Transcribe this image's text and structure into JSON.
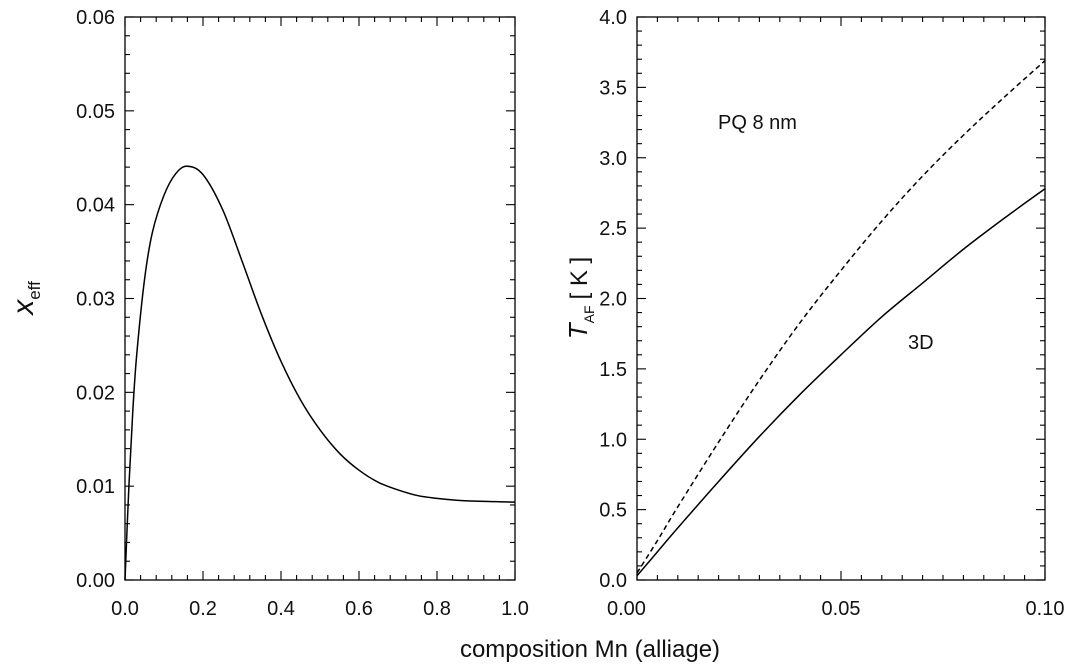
{
  "chart_data": [
    {
      "type": "line",
      "ylabel": "x",
      "ylabel_sub": "eff",
      "xlim": [
        0.0,
        1.0
      ],
      "ylim": [
        0.0,
        0.06
      ],
      "x_ticks": [
        "0.0",
        "0.2",
        "0.4",
        "0.6",
        "0.8",
        "1.0"
      ],
      "y_ticks": [
        "0.00",
        "0.01",
        "0.02",
        "0.03",
        "0.04",
        "0.05",
        "0.06"
      ],
      "series": [
        {
          "line_style": "solid",
          "x": [
            0.0,
            0.01,
            0.02,
            0.03,
            0.05,
            0.07,
            0.1,
            0.13,
            0.16,
            0.2,
            0.25,
            0.3,
            0.35,
            0.4,
            0.45,
            0.5,
            0.55,
            0.6,
            0.65,
            0.7,
            0.75,
            0.8,
            0.85,
            0.9,
            0.95,
            1.0
          ],
          "y": [
            0.0,
            0.01,
            0.018,
            0.024,
            0.032,
            0.037,
            0.041,
            0.0433,
            0.0441,
            0.0432,
            0.0395,
            0.034,
            0.0283,
            0.0233,
            0.0192,
            0.016,
            0.0135,
            0.0117,
            0.0104,
            0.0096,
            0.009,
            0.0087,
            0.0085,
            0.0084,
            0.00835,
            0.0083
          ]
        }
      ]
    },
    {
      "type": "line",
      "ylabel_prefix": "T",
      "ylabel_sub": "AF",
      "ylabel_unit": "[ K ]",
      "xlim": [
        0.0,
        0.1
      ],
      "ylim": [
        0.0,
        4.0
      ],
      "x_ticks": [
        "0.00",
        "0.05",
        "0.10"
      ],
      "y_ticks": [
        "0.0",
        "0.5",
        "1.0",
        "1.5",
        "2.0",
        "2.5",
        "3.0",
        "3.5",
        "4.0"
      ],
      "annotations": [
        "PQ 8 nm",
        "3D"
      ],
      "series": [
        {
          "line_style": "dashed",
          "x": [
            0.0,
            0.005,
            0.01,
            0.02,
            0.03,
            0.04,
            0.05,
            0.06,
            0.07,
            0.08,
            0.09,
            0.1
          ],
          "y": [
            0.05,
            0.28,
            0.52,
            0.98,
            1.42,
            1.83,
            2.2,
            2.55,
            2.87,
            3.16,
            3.43,
            3.69
          ]
        },
        {
          "line_style": "solid",
          "x": [
            0.0,
            0.005,
            0.01,
            0.02,
            0.03,
            0.04,
            0.05,
            0.06,
            0.07,
            0.08,
            0.09,
            0.1
          ],
          "y": [
            0.03,
            0.2,
            0.37,
            0.7,
            1.02,
            1.32,
            1.6,
            1.87,
            2.11,
            2.35,
            2.57,
            2.78
          ]
        }
      ]
    }
  ],
  "shared_xlabel": "composition Mn (alliage)"
}
